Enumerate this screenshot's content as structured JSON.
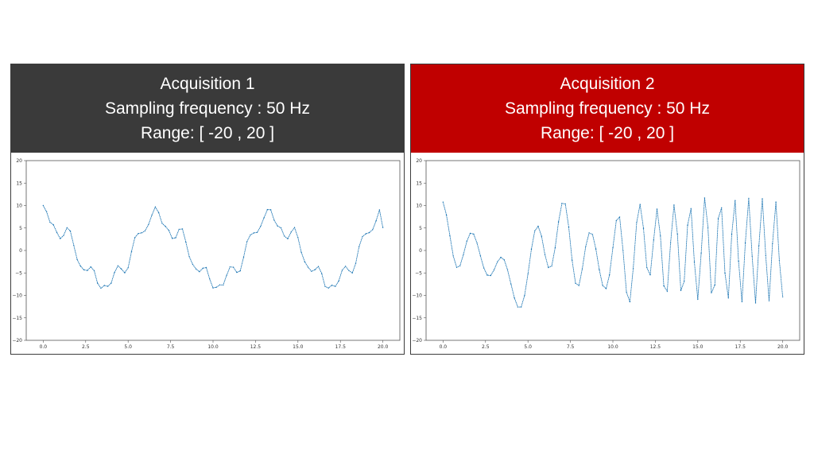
{
  "colors": {
    "panel1_header": "#3a3a3a",
    "panel2_header": "#c00000",
    "series": "#1f77b4"
  },
  "panels": [
    {
      "title": "Acquisition 1",
      "freq_label": "Sampling frequency",
      "freq_value": " : 50 Hz",
      "range": "Range: [ -20 , 20 ]"
    },
    {
      "title": "Acquisition 2",
      "freq_label": "Sampling frequency",
      "freq_value": " : 50 Hz",
      "range": "Range: [ -20 , 20 ]"
    }
  ],
  "chart_data": [
    {
      "type": "scatter",
      "title": "",
      "xlabel": "",
      "ylabel": "",
      "xlim": [
        -1,
        21
      ],
      "ylim": [
        -20,
        20
      ],
      "xticks": [
        "0.0",
        "2.5",
        "5.0",
        "7.5",
        "10.0",
        "12.5",
        "15.0",
        "17.5",
        "20.0"
      ],
      "yticks": [
        "20",
        "15",
        "10",
        "5",
        "0",
        "−5",
        "−10",
        "−15",
        "−20"
      ],
      "grid": false,
      "series": [
        {
          "x": [
            0.0,
            0.2,
            0.4,
            0.6,
            0.8,
            1.0,
            1.2,
            1.4,
            1.6,
            1.8,
            2.0,
            2.2,
            2.4,
            2.6,
            2.8,
            3.0,
            3.2,
            3.4,
            3.6,
            3.8,
            4.0,
            4.2,
            4.4,
            4.6,
            4.8,
            5.0,
            5.2,
            5.4,
            5.6,
            5.8,
            6.0,
            6.2,
            6.4,
            6.6,
            6.8,
            7.0,
            7.2,
            7.4,
            7.6,
            7.8,
            8.0,
            8.2,
            8.4,
            8.6,
            8.8,
            9.0,
            9.2,
            9.4,
            9.6,
            9.8,
            10.0,
            10.2,
            10.4,
            10.6,
            10.8,
            11.0,
            11.2,
            11.4,
            11.6,
            11.8,
            12.0,
            12.2,
            12.4,
            12.6,
            12.8,
            13.0,
            13.2,
            13.4,
            13.6,
            13.8,
            14.0,
            14.2,
            14.4,
            14.6,
            14.8,
            15.0,
            15.2,
            15.4,
            15.6,
            15.8,
            16.0,
            16.2,
            16.4,
            16.6,
            16.8,
            17.0,
            17.2,
            17.4,
            17.6,
            17.8,
            18.0,
            18.2,
            18.4,
            18.6,
            18.8,
            19.0,
            19.2,
            19.4,
            19.6,
            19.8,
            20.0
          ],
          "y": [
            10.0,
            8.62,
            6.29,
            5.71,
            4.02,
            2.63,
            3.33,
            5.07,
            4.32,
            1.13,
            -2.02,
            -3.51,
            -4.31,
            -4.46,
            -3.65,
            -4.49,
            -7.29,
            -8.4,
            -7.79,
            -7.98,
            -7.3,
            -4.88,
            -3.42,
            -4.1,
            -4.98,
            -3.84,
            -0.19,
            2.89,
            3.77,
            3.93,
            4.37,
            5.76,
            7.87,
            9.69,
            8.45,
            6.05,
            5.34,
            4.44,
            2.68,
            2.84,
            4.7,
            4.79,
            1.87,
            -1.37,
            -3.08,
            -4.12,
            -4.72,
            -3.95,
            -3.8,
            -6.33,
            -8.34,
            -8.17,
            -7.67,
            -7.68,
            -5.53,
            -3.66,
            -3.73,
            -4.89,
            -4.54,
            -1.48,
            1.99,
            3.46,
            3.92,
            4.02,
            5.34,
            7.28,
            9.09,
            9.07,
            6.72,
            5.43,
            5.02,
            3.21,
            2.61,
            4.1,
            5.1,
            2.89,
            -0.44,
            -2.53,
            -3.74,
            -4.65,
            -4.28,
            -3.57,
            -5.12,
            -8.02,
            -8.36,
            -7.74,
            -8.0,
            -6.79,
            -4.42,
            -3.53,
            -4.48,
            -5.0,
            -2.89,
            0.85,
            3.09,
            3.71,
            3.97,
            4.64,
            6.58,
            9.05,
            5.11
          ]
        }
      ]
    },
    {
      "type": "scatter",
      "title": "",
      "xlabel": "",
      "ylabel": "",
      "xlim": [
        -1,
        21
      ],
      "ylim": [
        -20,
        20
      ],
      "xticks": [
        "0.0",
        "2.5",
        "5.0",
        "7.5",
        "10.0",
        "12.5",
        "15.0",
        "17.5",
        "20.0"
      ],
      "yticks": [
        "20",
        "15",
        "10",
        "5",
        "0",
        "−5",
        "−10",
        "−15",
        "−20"
      ],
      "grid": false,
      "series": [
        {
          "x": [
            0.0,
            0.2,
            0.4,
            0.6,
            0.8,
            1.0,
            1.2,
            1.4,
            1.6,
            1.8,
            2.0,
            2.2,
            2.4,
            2.6,
            2.8,
            3.0,
            3.2,
            3.4,
            3.6,
            3.8,
            4.0,
            4.2,
            4.4,
            4.6,
            4.8,
            5.0,
            5.2,
            5.4,
            5.6,
            5.8,
            6.0,
            6.2,
            6.4,
            6.6,
            6.8,
            7.0,
            7.2,
            7.4,
            7.6,
            7.8,
            8.0,
            8.2,
            8.4,
            8.6,
            8.8,
            9.0,
            9.2,
            9.4,
            9.6,
            9.8,
            10.0,
            10.2,
            10.4,
            10.6,
            10.8,
            11.0,
            11.2,
            11.4,
            11.6,
            11.8,
            12.0,
            12.2,
            12.4,
            12.6,
            12.8,
            13.0,
            13.2,
            13.4,
            13.6,
            13.8,
            14.0,
            14.2,
            14.4,
            14.6,
            14.8,
            15.0,
            15.2,
            15.4,
            15.6,
            15.8,
            16.0,
            16.2,
            16.4,
            16.6,
            16.8,
            17.0,
            17.2,
            17.4,
            17.6,
            17.8,
            18.0,
            18.2,
            18.4,
            18.6,
            18.8,
            19.0,
            19.2,
            19.4,
            19.6,
            19.8,
            20.0
          ],
          "y": [
            10.76,
            7.89,
            3.32,
            -1.23,
            -3.77,
            -3.39,
            -0.88,
            2.07,
            3.83,
            3.66,
            1.64,
            -1.2,
            -3.89,
            -5.49,
            -5.59,
            -4.31,
            -2.54,
            -1.53,
            -2.09,
            -4.31,
            -7.47,
            -10.56,
            -12.58,
            -12.58,
            -10.03,
            -5.21,
            0.28,
            4.34,
            5.39,
            3.16,
            -0.91,
            -3.8,
            -3.46,
            0.64,
            6.36,
            10.48,
            10.36,
            5.17,
            -2.17,
            -7.3,
            -7.8,
            -4.1,
            0.89,
            3.91,
            3.57,
            0.34,
            -4.28,
            -7.8,
            -8.49,
            -5.46,
            0.6,
            6.64,
            7.46,
            -0.07,
            -9.29,
            -11.44,
            -3.98,
            6.22,
            10.25,
            4.93,
            -3.81,
            -5.44,
            2.34,
            9.21,
            3.24,
            -7.9,
            -9.08,
            1.71,
            10.13,
            3.65,
            -8.92,
            -6.89,
            5.63,
            9.33,
            -2.58,
            -10.88,
            -0.58,
            11.7,
            5.16,
            -9.42,
            -7.71,
            7.09,
            9.51,
            -5.04,
            -10.58,
            3.6,
            11.11,
            -2.4,
            -11.41,
            1.7,
            11.6,
            -1.27,
            -11.68,
            1.08,
            11.53,
            -1.11,
            -11.2,
            1.53,
            10.77,
            -2.19,
            -10.31
          ]
        }
      ]
    }
  ]
}
